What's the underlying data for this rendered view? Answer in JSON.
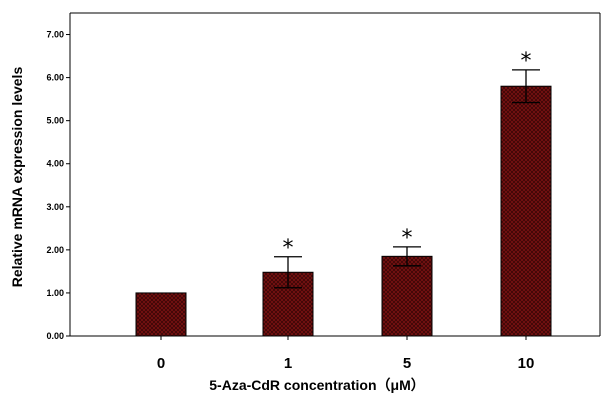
{
  "chart_data": {
    "type": "bar",
    "categories": [
      "0",
      "1",
      "5",
      "10"
    ],
    "values": [
      1.0,
      1.48,
      1.85,
      5.8
    ],
    "error": [
      0.0,
      0.36,
      0.22,
      0.38
    ],
    "significance": [
      "",
      "*",
      "*",
      "*"
    ],
    "xlabel": "5-Aza-CdR concentration（μM）",
    "ylabel": "Relative mRNA expression levels",
    "ylim": [
      0,
      7.5
    ],
    "yticks": [
      0,
      1,
      2,
      3,
      4,
      5,
      6,
      7
    ],
    "ytick_labels": [
      "0.00",
      "1.00",
      "2.00",
      "3.00",
      "4.00",
      "5.00",
      "6.00",
      "7.00"
    ],
    "grid": false,
    "bar_fill": "#7a1212",
    "bar_pattern": "crosshatch",
    "bar_edge": "#000000"
  }
}
